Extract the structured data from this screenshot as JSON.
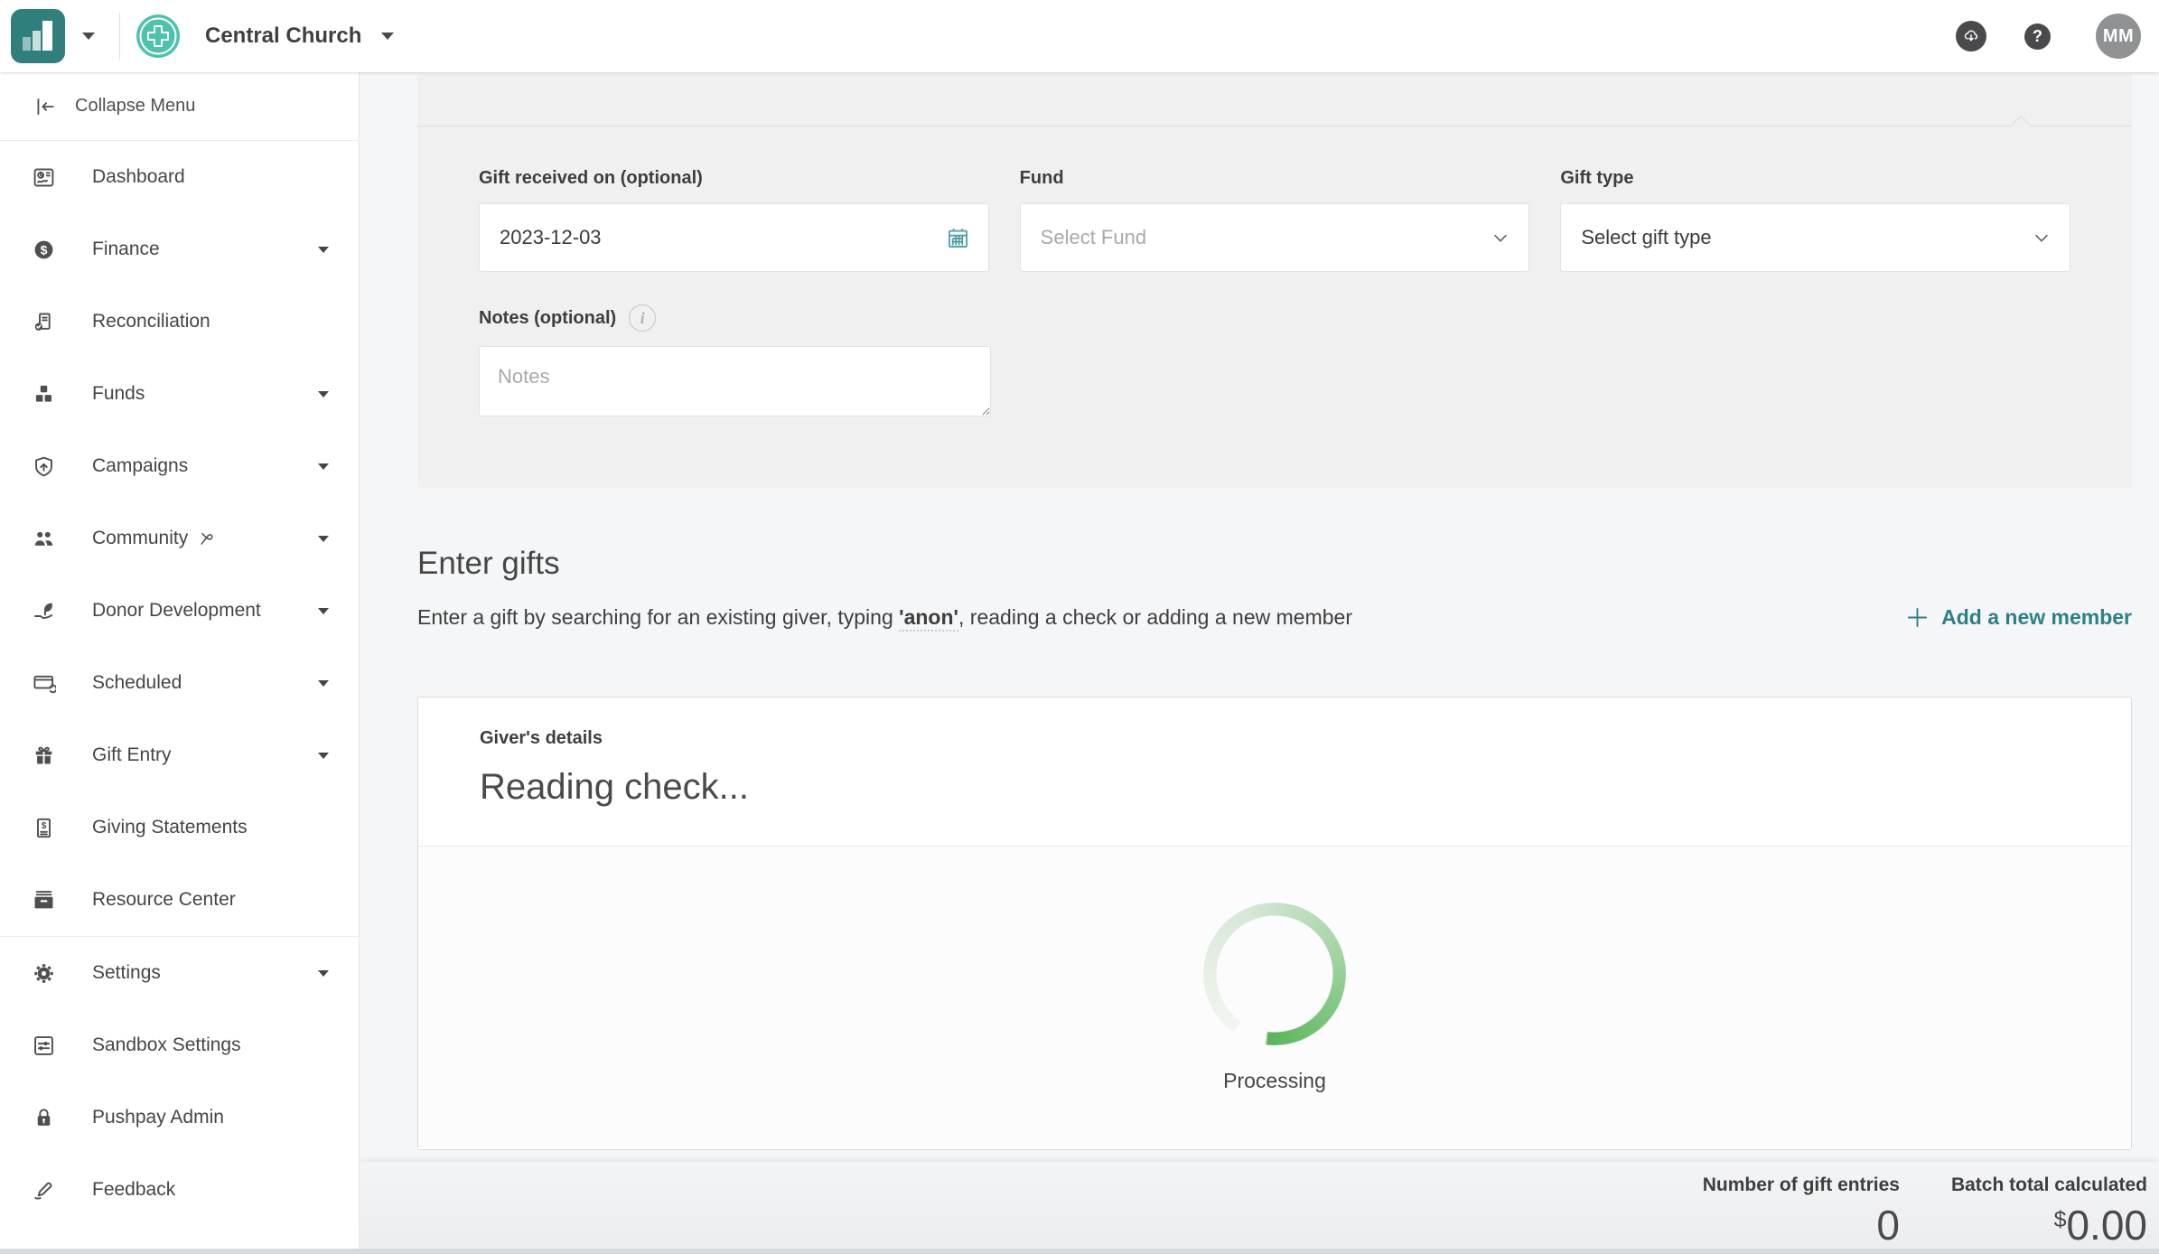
{
  "topbar": {
    "org_name": "Central Church",
    "avatar_initials": "MM",
    "icons": {
      "logo": "bar-chart-logo",
      "brand": "church-cross-badge",
      "upload": "cloud-download-icon",
      "help": "help-icon"
    },
    "help_glyph": "?"
  },
  "sidebar": {
    "collapse_label": "Collapse Menu",
    "items": [
      {
        "label": "Dashboard",
        "icon": "dashboard-icon",
        "expandable": false
      },
      {
        "label": "Finance",
        "icon": "finance-icon",
        "expandable": true
      },
      {
        "label": "Reconciliation",
        "icon": "reconciliation-icon",
        "expandable": false
      },
      {
        "label": "Funds",
        "icon": "funds-icon",
        "expandable": true
      },
      {
        "label": "Campaigns",
        "icon": "campaigns-icon",
        "expandable": true
      },
      {
        "label": "Community",
        "icon": "community-icon",
        "suffix_icon": "unlink-icon",
        "expandable": true
      },
      {
        "label": "Donor Development",
        "icon": "donor-development-icon",
        "expandable": true
      },
      {
        "label": "Scheduled",
        "icon": "scheduled-icon",
        "expandable": true
      },
      {
        "label": "Gift Entry",
        "icon": "gift-entry-icon",
        "expandable": true
      },
      {
        "label": "Giving Statements",
        "icon": "giving-statements-icon",
        "expandable": false
      },
      {
        "label": "Resource Center",
        "icon": "resource-center-icon",
        "expandable": false,
        "divider_after": true
      },
      {
        "label": "Settings",
        "icon": "settings-icon",
        "expandable": true
      },
      {
        "label": "Sandbox Settings",
        "icon": "sandbox-settings-icon",
        "expandable": false
      },
      {
        "label": "Pushpay Admin",
        "icon": "pushpay-admin-icon",
        "expandable": false
      },
      {
        "label": "Feedback",
        "icon": "feedback-icon",
        "expandable": false
      }
    ]
  },
  "batch_form": {
    "date_label": "Gift received on (optional)",
    "date_value": "2023-12-03",
    "date_icon": "calendar-icon",
    "fund_label": "Fund",
    "fund_placeholder": "Select Fund",
    "gift_type_label": "Gift type",
    "gift_type_value": "Select gift type",
    "notes_label": "Notes (optional)",
    "notes_info_glyph": "i",
    "notes_placeholder": "Notes"
  },
  "enter_gifts": {
    "title": "Enter gifts",
    "description_before": "Enter a gift by searching for an existing giver, typing ",
    "description_highlight": "'anon'",
    "description_after": ", reading a check or adding a new member",
    "add_member_label": "Add a new member",
    "add_member_icon": "plus-icon"
  },
  "giver_card": {
    "header": "Giver's details",
    "status": "Reading check...",
    "processing_label": "Processing"
  },
  "footer": {
    "entries_label": "Number of gift entries",
    "entries_value": "0",
    "total_label": "Batch total calculated",
    "currency_symbol": "$",
    "total_value": "0.00"
  },
  "colors": {
    "logo_teal": "#2F7F7C",
    "brand_mint": "#4CC3AB",
    "accent_teal": "#2B8186",
    "calendar_teal": "#4E9EA6",
    "spinner_green": "#58B65B",
    "panel_gray": "#F0F0F1",
    "page_bg": "#F5F6F8"
  }
}
